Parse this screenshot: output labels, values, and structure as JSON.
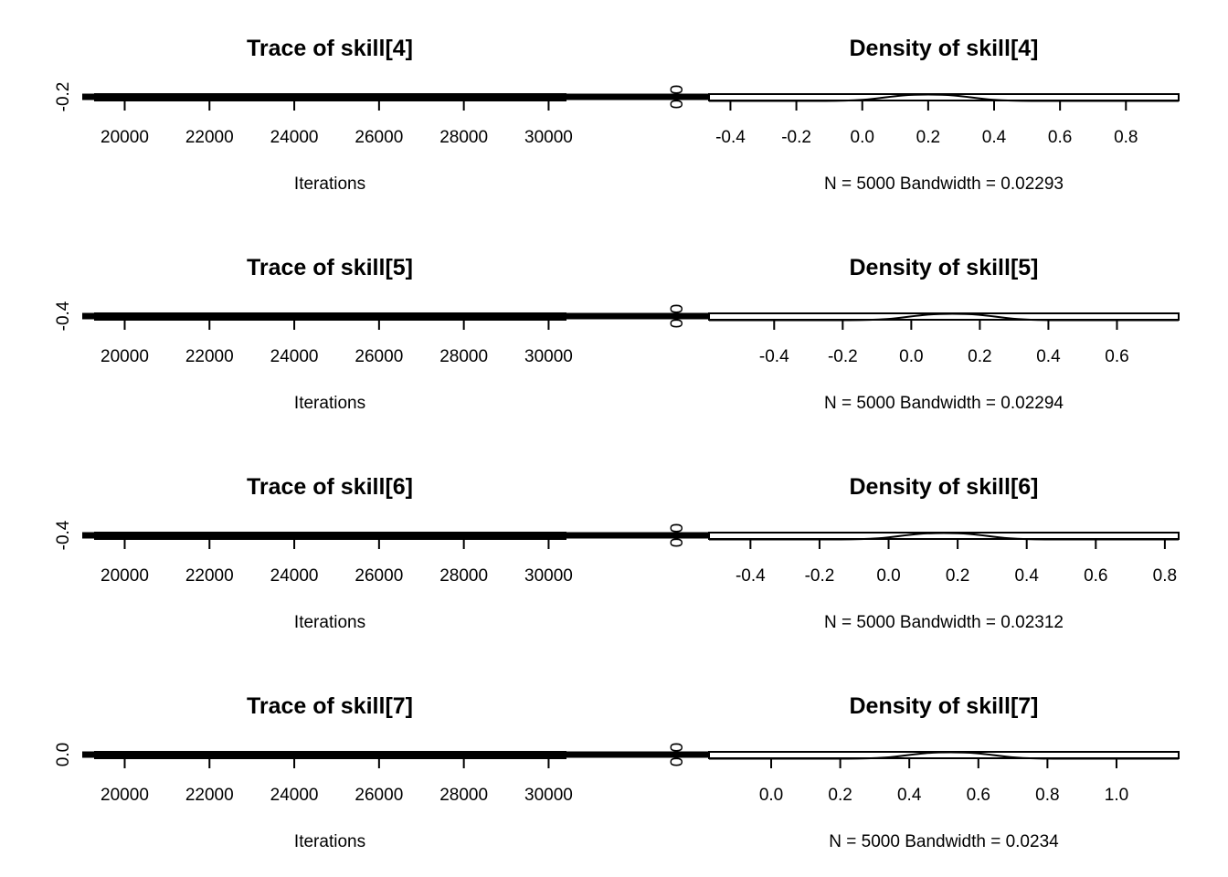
{
  "colors": {
    "chain1": "#000000",
    "chain2": "#DF536B",
    "chain3": "#22A02B",
    "frame": "#000000"
  },
  "chart_data": [
    {
      "type": "line",
      "panel": "trace",
      "title": "Trace of skill[4]",
      "xlabel": "Iterations",
      "ylabel": "",
      "x_ticks": [
        "20000",
        "22000",
        "24000",
        "26000",
        "28000",
        "30000"
      ],
      "xlim": [
        19300,
        30400
      ],
      "y_ticks": [
        "-0.2"
      ],
      "x_range": [
        20000,
        30000
      ]
    },
    {
      "type": "line",
      "panel": "density",
      "title": "Density of skill[4]",
      "xlabel": "N = 5000   Bandwidth = 0.02293",
      "ylabel": "",
      "x_ticks": [
        "-0.4",
        "-0.2",
        "0.0",
        "0.2",
        "0.4",
        "0.6",
        "0.8"
      ],
      "xlim": [
        -0.465,
        0.96
      ],
      "y_ticks": [
        "0.0"
      ],
      "peak": 0.2
    },
    {
      "type": "line",
      "panel": "trace",
      "title": "Trace of skill[5]",
      "xlabel": "Iterations",
      "ylabel": "",
      "x_ticks": [
        "20000",
        "22000",
        "24000",
        "26000",
        "28000",
        "30000"
      ],
      "xlim": [
        19300,
        30400
      ],
      "y_ticks": [
        "-0.4"
      ],
      "x_range": [
        20000,
        30000
      ]
    },
    {
      "type": "line",
      "panel": "density",
      "title": "Density of skill[5]",
      "xlabel": "N = 5000   Bandwidth = 0.02294",
      "ylabel": "",
      "x_ticks": [
        "-0.4",
        "-0.2",
        "0.0",
        "0.2",
        "0.4",
        "0.6"
      ],
      "xlim": [
        -0.59,
        0.78
      ],
      "y_ticks": [
        "0.0"
      ],
      "peak": 0.12
    },
    {
      "type": "line",
      "panel": "trace",
      "title": "Trace of skill[6]",
      "xlabel": "Iterations",
      "ylabel": "",
      "x_ticks": [
        "20000",
        "22000",
        "24000",
        "26000",
        "28000",
        "30000"
      ],
      "xlim": [
        19300,
        30400
      ],
      "y_ticks": [
        "-0.4"
      ],
      "x_range": [
        20000,
        30000
      ]
    },
    {
      "type": "line",
      "panel": "density",
      "title": "Density of skill[6]",
      "xlabel": "N = 5000   Bandwidth = 0.02312",
      "ylabel": "",
      "x_ticks": [
        "-0.4",
        "-0.2",
        "0.0",
        "0.2",
        "0.4",
        "0.6",
        "0.8"
      ],
      "xlim": [
        -0.52,
        0.84
      ],
      "y_ticks": [
        "0.0"
      ],
      "peak": 0.16
    },
    {
      "type": "line",
      "panel": "trace",
      "title": "Trace of skill[7]",
      "xlabel": "Iterations",
      "ylabel": "",
      "x_ticks": [
        "20000",
        "22000",
        "24000",
        "26000",
        "28000",
        "30000"
      ],
      "xlim": [
        19300,
        30400
      ],
      "y_ticks": [
        "0.0"
      ],
      "x_range": [
        20000,
        30000
      ]
    },
    {
      "type": "line",
      "panel": "density",
      "title": "Density of skill[7]",
      "xlabel": "N = 5000   Bandwidth = 0.0234",
      "ylabel": "",
      "x_ticks": [
        "0.0",
        "0.2",
        "0.4",
        "0.6",
        "0.8",
        "1.0"
      ],
      "xlim": [
        -0.18,
        1.18
      ],
      "y_ticks": [
        "0.0"
      ],
      "peak": 0.52
    }
  ]
}
